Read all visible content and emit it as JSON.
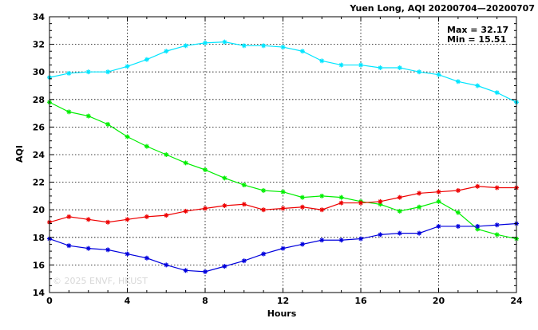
{
  "chart_data": {
    "type": "line",
    "title": "Yuen Long, AQI 20200704—20200707",
    "xlabel": "Hours",
    "ylabel": "AQI",
    "xlim": [
      0,
      24
    ],
    "ylim": [
      14,
      34
    ],
    "x_ticks": [
      0,
      4,
      8,
      12,
      16,
      20,
      24
    ],
    "y_ticks": [
      14,
      16,
      18,
      20,
      22,
      24,
      26,
      28,
      30,
      32,
      34
    ],
    "grid": true,
    "annotations": {
      "max_text": "Max = 32.17",
      "min_text": "Min = 15.51",
      "watermark": "© 2025  ENVF, HKUST"
    },
    "x": [
      0,
      1,
      2,
      3,
      4,
      5,
      6,
      7,
      8,
      9,
      10,
      11,
      12,
      13,
      14,
      15,
      16,
      17,
      18,
      19,
      20,
      21,
      22,
      23,
      24
    ],
    "series": [
      {
        "color": "#00e5ff",
        "values": [
          29.6,
          29.9,
          30.0,
          30.0,
          30.4,
          30.9,
          31.5,
          31.9,
          32.1,
          32.17,
          31.9,
          31.9,
          31.8,
          31.5,
          30.8,
          30.5,
          30.5,
          30.3,
          30.3,
          30.0,
          29.8,
          29.3,
          29.0,
          28.5,
          27.8
        ]
      },
      {
        "color": "#00ee00",
        "values": [
          27.8,
          27.1,
          26.8,
          26.2,
          25.3,
          24.6,
          24.0,
          23.4,
          22.9,
          22.3,
          21.8,
          21.4,
          21.3,
          20.9,
          21.0,
          20.9,
          20.6,
          20.4,
          19.9,
          20.2,
          20.6,
          19.8,
          18.6,
          18.2,
          17.9
        ]
      },
      {
        "color": "#ee0000",
        "values": [
          19.1,
          19.5,
          19.3,
          19.1,
          19.3,
          19.5,
          19.6,
          19.9,
          20.1,
          20.3,
          20.4,
          20.0,
          20.1,
          20.2,
          20.0,
          20.5,
          20.5,
          20.6,
          20.9,
          21.2,
          21.3,
          21.4,
          21.7,
          21.6,
          21.6
        ]
      },
      {
        "color": "#0000dd",
        "values": [
          17.9,
          17.4,
          17.2,
          17.1,
          16.8,
          16.5,
          16.0,
          15.6,
          15.51,
          15.9,
          16.3,
          16.8,
          17.2,
          17.5,
          17.8,
          17.8,
          17.9,
          18.2,
          18.3,
          18.3,
          18.8,
          18.8,
          18.8,
          18.9,
          19.0
        ]
      }
    ]
  }
}
